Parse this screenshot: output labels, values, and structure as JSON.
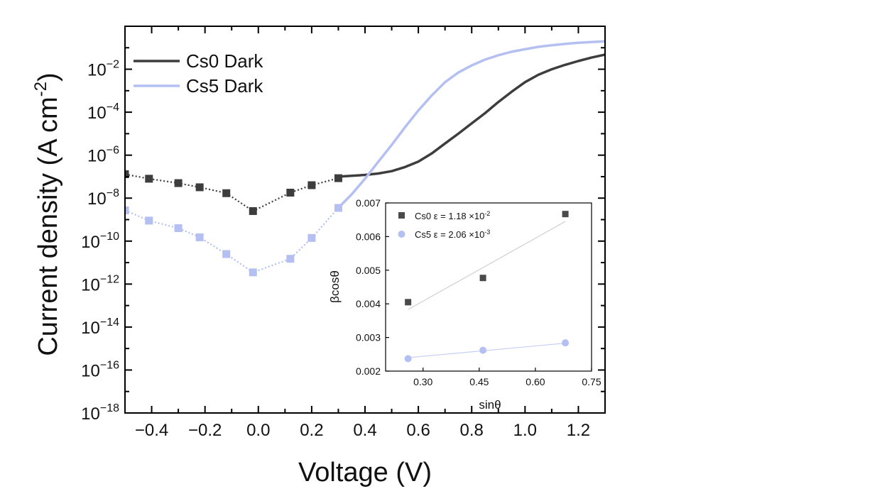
{
  "chart_data": [
    {
      "type": "line",
      "title": "",
      "xlabel": "Voltage (V)",
      "ylabel": "Current density (A cm",
      "ylabel_sup": "-2",
      "ylabel_close": ")",
      "y_scale": "log",
      "xlim": [
        -0.5,
        1.3
      ],
      "ylim": [
        1e-18,
        1
      ],
      "x_ticks": [
        {
          "value": -0.4,
          "label": "−0.4"
        },
        {
          "value": -0.2,
          "label": "−0.2"
        },
        {
          "value": 0.0,
          "label": "0.0"
        },
        {
          "value": 0.2,
          "label": "0.2"
        },
        {
          "value": 0.4,
          "label": "0.4"
        },
        {
          "value": 0.6,
          "label": "0.6"
        },
        {
          "value": 0.8,
          "label": "0.8"
        },
        {
          "value": 1.0,
          "label": "1.0"
        },
        {
          "value": 1.2,
          "label": "1.2"
        }
      ],
      "y_ticks": [
        {
          "exp": -2,
          "base": "10",
          "sup": "−2"
        },
        {
          "exp": -4,
          "base": "10",
          "sup": "−4"
        },
        {
          "exp": -6,
          "base": "10",
          "sup": "−6"
        },
        {
          "exp": -8,
          "base": "10",
          "sup": "−8"
        },
        {
          "exp": -10,
          "base": "10",
          "sup": "−10"
        },
        {
          "exp": -12,
          "base": "10",
          "sup": "−12"
        },
        {
          "exp": -14,
          "base": "10",
          "sup": "−14"
        },
        {
          "exp": -16,
          "base": "10",
          "sup": "−16"
        },
        {
          "exp": -18,
          "base": "10",
          "sup": "−18"
        }
      ],
      "legend": {
        "placement": "top-left"
      },
      "series": [
        {
          "name": "Cs0 Dark",
          "color": "#3d3d3d",
          "markers": [
            {
              "x": -0.5,
              "y": 1.3e-07
            },
            {
              "x": -0.41,
              "y": 8e-08
            },
            {
              "x": -0.3,
              "y": 5e-08
            },
            {
              "x": -0.22,
              "y": 3.2e-08
            },
            {
              "x": -0.12,
              "y": 1.7e-08
            },
            {
              "x": -0.02,
              "y": 2.5e-09
            },
            {
              "x": 0.12,
              "y": 1.8e-08
            },
            {
              "x": 0.2,
              "y": 4e-08
            },
            {
              "x": 0.3,
              "y": 8.5e-08
            }
          ],
          "curve": [
            {
              "x": 0.3,
              "y": 1e-07
            },
            {
              "x": 0.35,
              "y": 1.1e-07
            },
            {
              "x": 0.4,
              "y": 1.2e-07
            },
            {
              "x": 0.45,
              "y": 1.4e-07
            },
            {
              "x": 0.5,
              "y": 1.8e-07
            },
            {
              "x": 0.55,
              "y": 2.8e-07
            },
            {
              "x": 0.6,
              "y": 5e-07
            },
            {
              "x": 0.65,
              "y": 1.2e-06
            },
            {
              "x": 0.7,
              "y": 3.5e-06
            },
            {
              "x": 0.75,
              "y": 1e-05
            },
            {
              "x": 0.8,
              "y": 3e-05
            },
            {
              "x": 0.85,
              "y": 9e-05
            },
            {
              "x": 0.9,
              "y": 0.0003
            },
            {
              "x": 0.95,
              "y": 0.0009
            },
            {
              "x": 1.0,
              "y": 0.0025
            },
            {
              "x": 1.05,
              "y": 0.0055
            },
            {
              "x": 1.1,
              "y": 0.01
            },
            {
              "x": 1.15,
              "y": 0.016
            },
            {
              "x": 1.2,
              "y": 0.024
            },
            {
              "x": 1.25,
              "y": 0.035
            },
            {
              "x": 1.3,
              "y": 0.048
            }
          ]
        },
        {
          "name": "Cs5 Dark",
          "color": "#b4bff2",
          "markers": [
            {
              "x": -0.5,
              "y": 2.7e-09
            },
            {
              "x": -0.41,
              "y": 9e-10
            },
            {
              "x": -0.3,
              "y": 4e-10
            },
            {
              "x": -0.22,
              "y": 1.5e-10
            },
            {
              "x": -0.12,
              "y": 2.5e-11
            },
            {
              "x": -0.02,
              "y": 3.5e-12
            },
            {
              "x": 0.12,
              "y": 1.5e-11
            },
            {
              "x": 0.2,
              "y": 1.4e-10
            },
            {
              "x": 0.3,
              "y": 3.5e-09
            }
          ],
          "curve": [
            {
              "x": 0.3,
              "y": 3.5e-09
            },
            {
              "x": 0.35,
              "y": 1.5e-08
            },
            {
              "x": 0.4,
              "y": 8e-08
            },
            {
              "x": 0.45,
              "y": 5e-07
            },
            {
              "x": 0.5,
              "y": 3e-06
            },
            {
              "x": 0.55,
              "y": 2e-05
            },
            {
              "x": 0.6,
              "y": 0.00012
            },
            {
              "x": 0.65,
              "y": 0.0006
            },
            {
              "x": 0.7,
              "y": 0.0025
            },
            {
              "x": 0.75,
              "y": 0.007
            },
            {
              "x": 0.8,
              "y": 0.015
            },
            {
              "x": 0.85,
              "y": 0.028
            },
            {
              "x": 0.9,
              "y": 0.045
            },
            {
              "x": 0.95,
              "y": 0.065
            },
            {
              "x": 1.0,
              "y": 0.085
            },
            {
              "x": 1.05,
              "y": 0.11
            },
            {
              "x": 1.1,
              "y": 0.13
            },
            {
              "x": 1.15,
              "y": 0.15
            },
            {
              "x": 1.2,
              "y": 0.17
            },
            {
              "x": 1.25,
              "y": 0.185
            },
            {
              "x": 1.3,
              "y": 0.2
            }
          ]
        }
      ]
    },
    {
      "type": "scatter",
      "title": "",
      "xlabel": "sinθ",
      "ylabel": "βcosθ",
      "xlim": [
        0.2,
        0.75
      ],
      "ylim": [
        0.002,
        0.007
      ],
      "x_ticks": [
        {
          "value": 0.3,
          "label": "0.30"
        },
        {
          "value": 0.45,
          "label": "0.45"
        },
        {
          "value": 0.6,
          "label": "0.60"
        },
        {
          "value": 0.75,
          "label": "0.75"
        }
      ],
      "y_ticks": [
        {
          "value": 0.002,
          "label": "0.002"
        },
        {
          "value": 0.003,
          "label": "0.003"
        },
        {
          "value": 0.004,
          "label": "0.004"
        },
        {
          "value": 0.005,
          "label": "0.005"
        },
        {
          "value": 0.006,
          "label": "0.006"
        },
        {
          "value": 0.007,
          "label": "0.007"
        }
      ],
      "legend": {
        "placement": "top-left"
      },
      "series": [
        {
          "name": "Cs0",
          "label_main": "Cs0 ε = 1.18 ×10",
          "label_sup": "-2",
          "color": "#4a4a4a",
          "marker": "square",
          "points": [
            {
              "x": 0.26,
              "y": 0.00405
            },
            {
              "x": 0.46,
              "y": 0.00477
            },
            {
              "x": 0.68,
              "y": 0.00667
            }
          ],
          "fit": [
            {
              "x": 0.26,
              "y": 0.00383
            },
            {
              "x": 0.68,
              "y": 0.00645
            }
          ]
        },
        {
          "name": "Cs5",
          "label_main": "Cs5 ε = 2.06 ×10",
          "label_sup": "-3",
          "color": "#b4bff2",
          "marker": "circle",
          "points": [
            {
              "x": 0.26,
              "y": 0.00237
            },
            {
              "x": 0.46,
              "y": 0.00262
            },
            {
              "x": 0.68,
              "y": 0.00284
            }
          ],
          "fit": [
            {
              "x": 0.26,
              "y": 0.0024
            },
            {
              "x": 0.68,
              "y": 0.00283
            }
          ]
        }
      ]
    }
  ]
}
